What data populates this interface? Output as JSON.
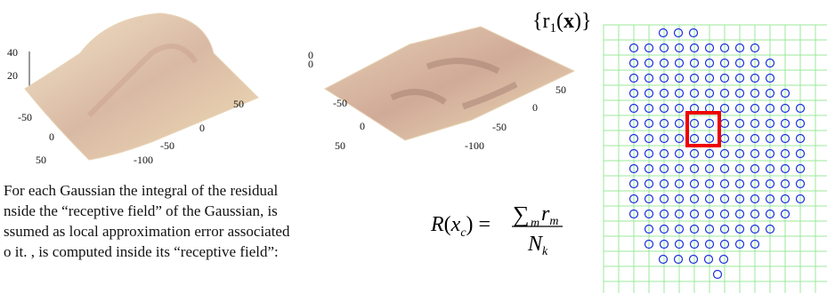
{
  "plots": [
    {
      "tick_labels": [
        "40",
        "20",
        "-50",
        "0",
        "50",
        "50",
        "0",
        "-50",
        "-100"
      ]
    },
    {
      "tick_labels": [
        "0",
        "0",
        "-50",
        "0",
        "50",
        "50",
        "0",
        "-50",
        "-100"
      ]
    }
  ],
  "grid_label": {
    "open": "{r",
    "sub": "1",
    "mid": "(",
    "bold": "x",
    "close": ")}"
  },
  "paragraph": [
    "For each Gaussian the integral of the residual",
    "nside the “receptive field” of the Gaussian, is",
    "ssumed as local approximation error associated",
    "o it. , is computed inside its “receptive field”:"
  ],
  "formula": {
    "lhs": "R",
    "lhs_arg": "x",
    "lhs_sub": "c",
    "sum": "∑",
    "sum_sub": "m",
    "num": "r",
    "num_sub": "m",
    "den": "N",
    "den_sub": "k"
  }
}
